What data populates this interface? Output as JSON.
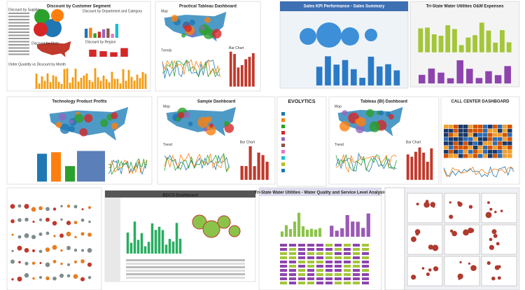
{
  "tiles": [
    {
      "title": "Discount by Customer Segment",
      "labels": [
        "Discount by Supplier",
        "Discount by State",
        "Discount by Department and Category",
        "Discount by Region",
        "Order Quantity vs Discount by Month"
      ]
    },
    {
      "title": "Practical Tableau Dashboard",
      "labels": [
        "Map",
        "Trends",
        "Bar Chart"
      ]
    },
    {
      "title": "Sales KPI Performance - Sales Summary"
    },
    {
      "title": "Tri-State Water Utilities O&M Expenses"
    },
    {
      "title": "Technology Product Profits"
    },
    {
      "title": "Sample Dashboard",
      "labels": [
        "Map",
        "Trend",
        "Bar Chart"
      ]
    },
    {
      "title": "EVOLYTICS"
    },
    {
      "title": "Tableau (BI) Dashboard",
      "labels": [
        "Map",
        "Trend",
        "Bar Chart"
      ]
    },
    {
      "title": "CALL CENTER DASHBOARD"
    },
    {},
    {
      "title": "BDCS Dashboard"
    },
    {
      "title": "Tri-State Water Utilities - Water Quality and Service Level Analysis"
    },
    {}
  ]
}
